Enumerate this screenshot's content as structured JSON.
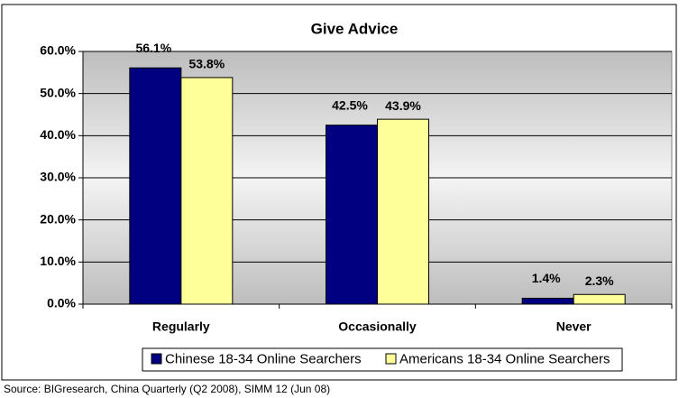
{
  "chart_data": {
    "type": "bar",
    "title": "Give Advice",
    "categories": [
      "Regularly",
      "Occasionally",
      "Never"
    ],
    "series": [
      {
        "name": "Chinese 18-34 Online Searchers",
        "color": "#000080",
        "values": [
          56.1,
          42.5,
          1.4
        ],
        "value_labels": [
          "56.1%",
          "42.5%",
          "1.4%"
        ]
      },
      {
        "name": "Americans 18-34 Online Searchers",
        "color": "#ffff99",
        "values": [
          53.8,
          43.9,
          2.3
        ],
        "value_labels": [
          "53.8%",
          "43.9%",
          "2.3%"
        ]
      }
    ],
    "ylim": [
      0,
      60
    ],
    "yticks": [
      {
        "value": 0,
        "label": "0.0%"
      },
      {
        "value": 10,
        "label": "10.0%"
      },
      {
        "value": 20,
        "label": "20.0%"
      },
      {
        "value": 30,
        "label": "30.0%"
      },
      {
        "value": 40,
        "label": "40.0%"
      },
      {
        "value": 50,
        "label": "50.0%"
      },
      {
        "value": 60,
        "label": "60.0%"
      }
    ],
    "grid": true,
    "source": "Source: BIGresearch, China Quarterly (Q2 2008), SIMM 12 (Jun 08)"
  }
}
